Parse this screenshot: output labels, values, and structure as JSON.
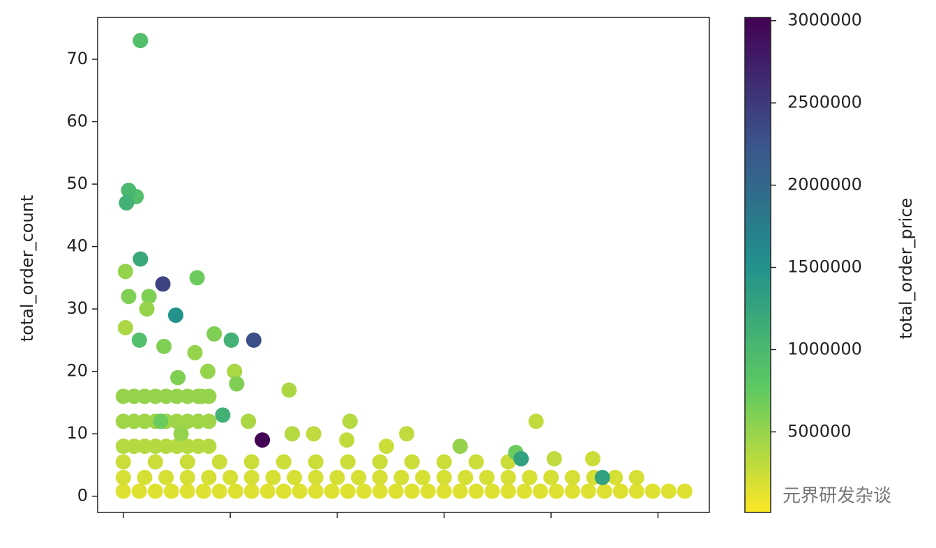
{
  "chart_data": {
    "type": "scatter",
    "y_label": "total_order_count",
    "colorbar_label": "total_order_price",
    "colormap": "viridis_r",
    "x": [
      0,
      0.15,
      0.3,
      0.45,
      0.6,
      0.75,
      0.9,
      1.05,
      1.2,
      1.35,
      1.5,
      1.65,
      1.8,
      1.95,
      2.1,
      2.25,
      2.4,
      2.55,
      2.7,
      2.85,
      3,
      3.15,
      3.3,
      3.45,
      3.6,
      3.75,
      3.9,
      4.05,
      4.2,
      4.35,
      4.5,
      4.65,
      4.8,
      4.95,
      5.1,
      5.25,
      0,
      0.2,
      0.4,
      0.6,
      0.8,
      1,
      1.2,
      1.4,
      1.6,
      1.8,
      2,
      2.2,
      2.4,
      2.6,
      2.8,
      3,
      3.2,
      3.4,
      3.6,
      3.8,
      4,
      4.2,
      4.4,
      4.6,
      4.8,
      0,
      0.3,
      0.6,
      0.9,
      1.2,
      1.5,
      1.8,
      2.1,
      2.4,
      2.7,
      3,
      3.3,
      3.6,
      0,
      0.1,
      0.2,
      0.3,
      0.4,
      0.5,
      0.6,
      0.7,
      0.8,
      0,
      0.1,
      0.2,
      0.3,
      0.4,
      0.5,
      0.6,
      0.7,
      0.8,
      0,
      0.1,
      0.2,
      0.3,
      0.4,
      0.5,
      0.6,
      0.7,
      0.8,
      0.02,
      0.05,
      0.24,
      0.22,
      0.02,
      0.38,
      0.67,
      1.04,
      1.06,
      1.55,
      0.79,
      0.51,
      0.73,
      1.17,
      2.12,
      2.09,
      2.65,
      3.15,
      3.86,
      4.03,
      4.39,
      1.78,
      1.58,
      2.46,
      0.35,
      0.54,
      3.67,
      0.85,
      0.69,
      0.16,
      0.12,
      0.15,
      0.05,
      0.93,
      1.01,
      0.03,
      0.16,
      3.72,
      4.48,
      0.49,
      1.22,
      0.37,
      1.3
    ],
    "values": [
      0.8,
      0.8,
      0.8,
      0.8,
      0.8,
      0.8,
      0.8,
      0.8,
      0.8,
      0.8,
      0.8,
      0.8,
      0.8,
      0.8,
      0.8,
      0.8,
      0.8,
      0.8,
      0.8,
      0.8,
      0.8,
      0.8,
      0.8,
      0.8,
      0.8,
      0.8,
      0.8,
      0.8,
      0.8,
      0.8,
      0.8,
      0.8,
      0.8,
      0.8,
      0.8,
      0.8,
      3,
      3,
      3,
      3,
      3,
      3,
      3,
      3,
      3,
      3,
      3,
      3,
      3,
      3,
      3,
      3,
      3,
      3,
      3,
      3,
      3,
      3,
      3,
      3,
      3,
      5.5,
      5.5,
      5.5,
      5.5,
      5.5,
      5.5,
      5.5,
      5.5,
      5.5,
      5.5,
      5.5,
      5.5,
      5.5,
      8,
      8,
      8,
      8,
      8,
      8,
      8,
      8,
      8,
      12,
      12,
      12,
      12,
      12,
      12,
      12,
      12,
      12,
      16,
      16,
      16,
      16,
      16,
      16,
      16,
      16,
      16,
      36,
      32,
      32,
      30,
      27,
      24,
      23,
      20,
      18,
      17,
      20,
      19,
      16,
      12,
      12,
      9,
      10,
      8,
      12,
      6,
      6,
      10,
      10,
      8,
      12,
      10,
      7,
      26,
      35,
      73,
      48,
      25,
      49,
      13,
      25,
      47,
      38,
      6,
      3,
      29,
      25,
      34,
      9
    ],
    "color_values": [
      150000,
      150000,
      150000,
      150000,
      150000,
      150000,
      150000,
      150000,
      150000,
      150000,
      150000,
      150000,
      150000,
      150000,
      150000,
      150000,
      150000,
      150000,
      150000,
      150000,
      150000,
      150000,
      150000,
      150000,
      150000,
      150000,
      150000,
      150000,
      150000,
      150000,
      150000,
      150000,
      150000,
      150000,
      150000,
      150000,
      200000,
      200000,
      200000,
      200000,
      200000,
      200000,
      200000,
      200000,
      200000,
      200000,
      200000,
      200000,
      200000,
      200000,
      200000,
      200000,
      200000,
      200000,
      200000,
      200000,
      200000,
      200000,
      200000,
      200000,
      200000,
      250000,
      250000,
      250000,
      250000,
      250000,
      250000,
      250000,
      250000,
      250000,
      250000,
      250000,
      250000,
      250000,
      350000,
      350000,
      350000,
      350000,
      350000,
      350000,
      350000,
      350000,
      350000,
      450000,
      450000,
      450000,
      450000,
      450000,
      450000,
      450000,
      450000,
      450000,
      500000,
      500000,
      500000,
      500000,
      500000,
      500000,
      500000,
      500000,
      500000,
      500000,
      600000,
      600000,
      500000,
      400000,
      600000,
      500000,
      400000,
      600000,
      400000,
      500000,
      600000,
      500000,
      400000,
      350000,
      300000,
      300000,
      500000,
      300000,
      300000,
      250000,
      300000,
      350000,
      250000,
      700000,
      500000,
      700000,
      600000,
      700000,
      900000,
      900000,
      900000,
      1000000,
      1100000,
      1100000,
      1100000,
      1200000,
      1300000,
      1300000,
      1500000,
      2300000,
      2400000,
      3000000
    ],
    "xlim": [
      -0.24,
      5.48
    ],
    "xticks": [
      0,
      1,
      2,
      3,
      4,
      5
    ],
    "ylim": [
      -2.6,
      76.7
    ],
    "yticks": [
      0,
      10,
      20,
      30,
      40,
      50,
      60,
      70
    ],
    "clim": [
      10000,
      3020000
    ],
    "cticks": [
      500000,
      1000000,
      1500000,
      2000000,
      2500000,
      3000000
    ]
  },
  "watermark": "元界研发杂谈"
}
